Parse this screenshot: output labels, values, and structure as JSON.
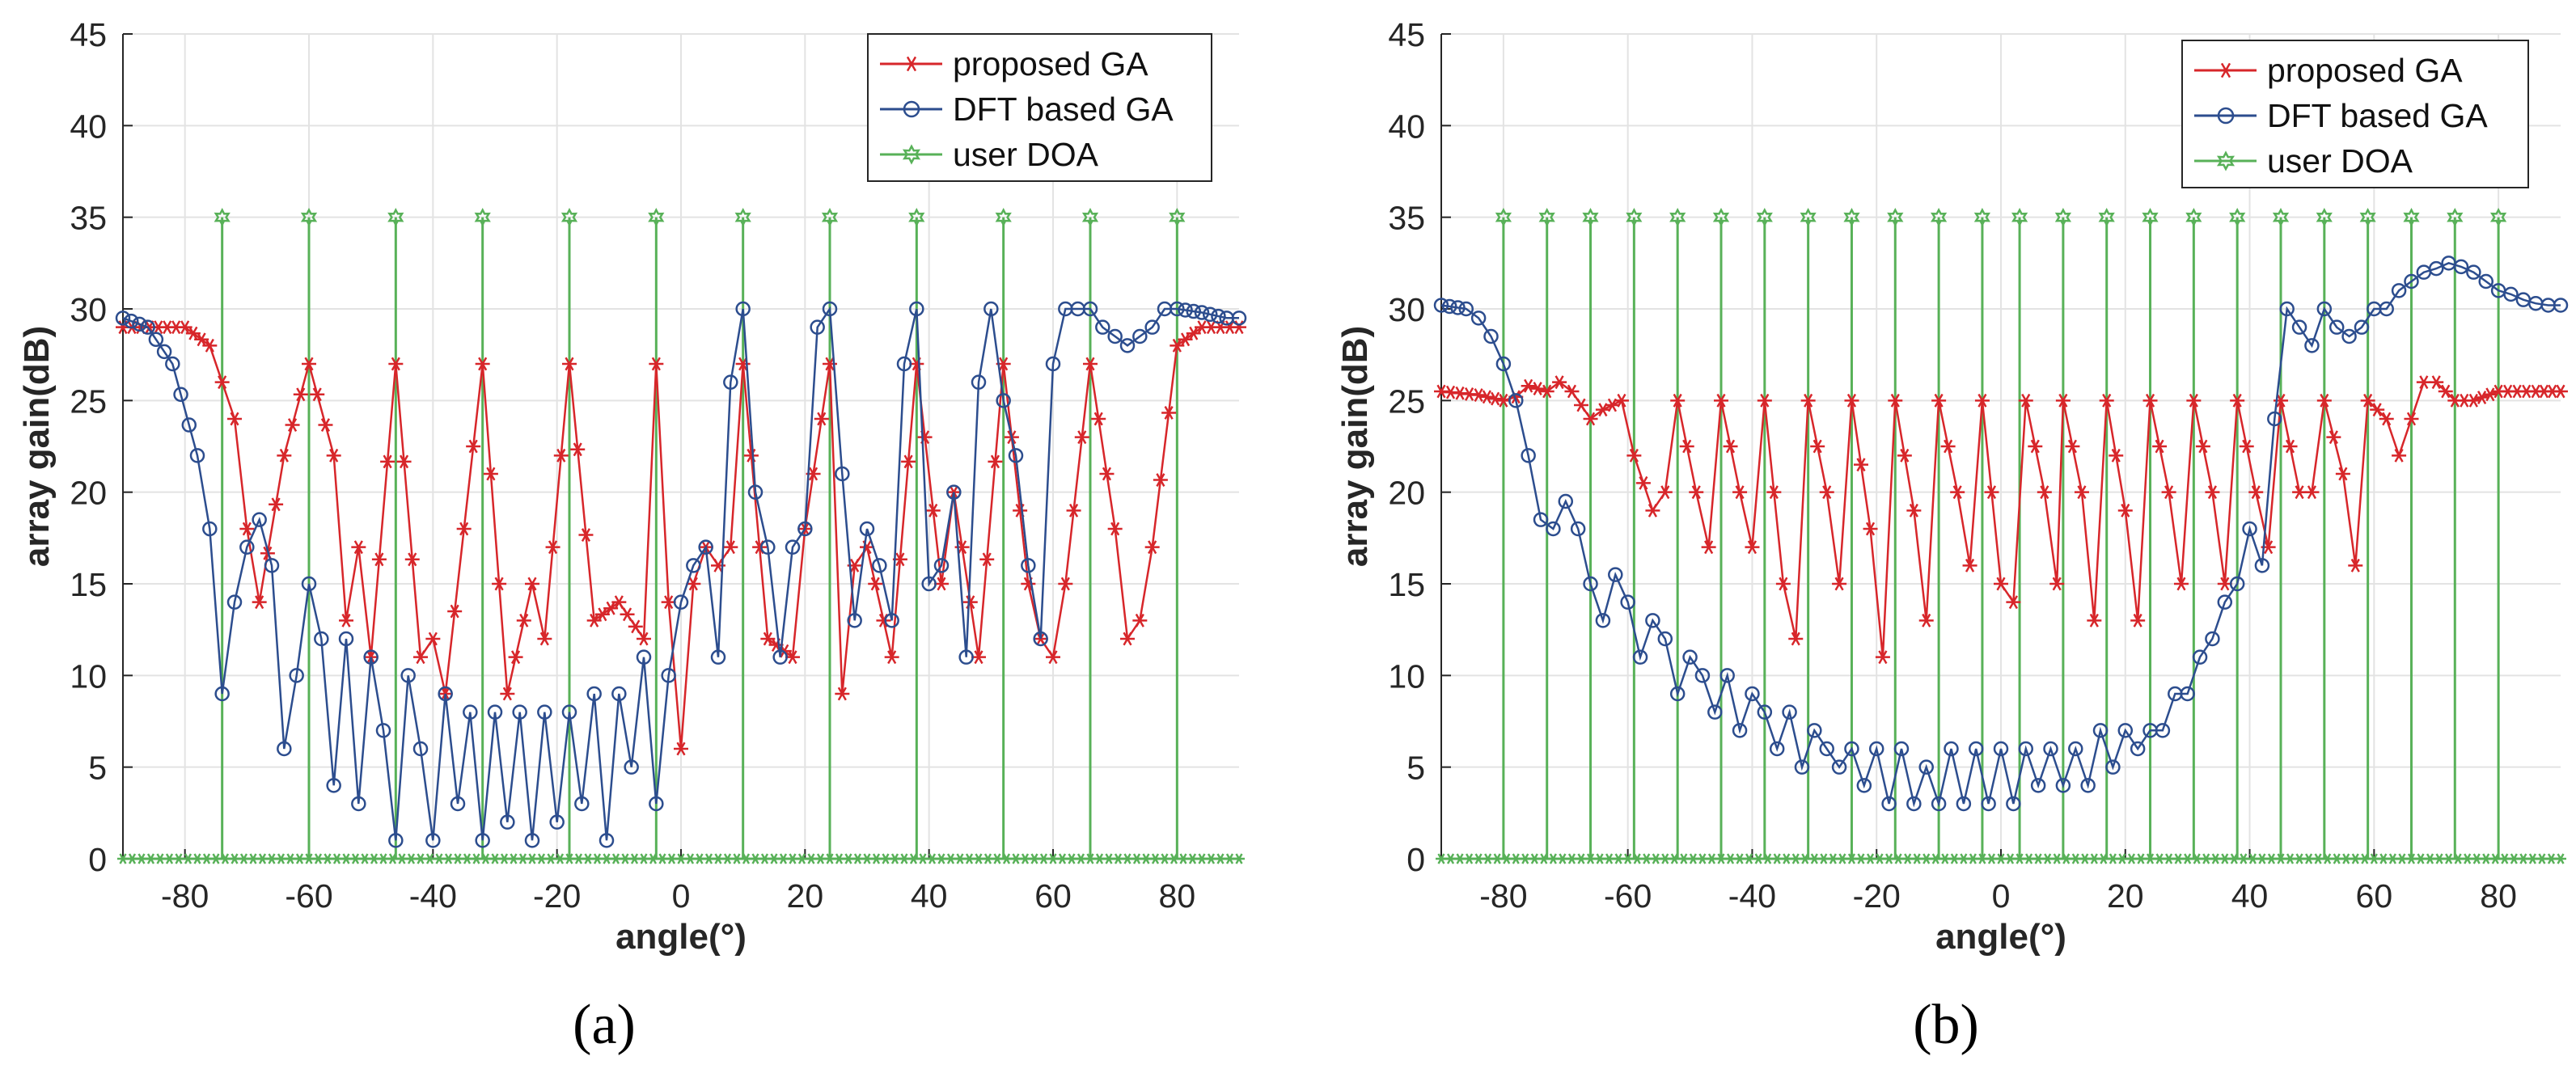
{
  "colors": {
    "proposed": "#d7262a",
    "dft": "#2c4d8e",
    "doa": "#58b158",
    "grid": "#e3e3e3",
    "axis": "#262626"
  },
  "chart_data": [
    {
      "type": "line",
      "caption": "(a)",
      "xlabel": "angle(°)",
      "ylabel": "array gain(dB)",
      "xlim": [
        -90,
        90
      ],
      "ylim": [
        0,
        45
      ],
      "xticks": [
        -80,
        -60,
        -40,
        -20,
        0,
        20,
        40,
        60,
        80
      ],
      "yticks": [
        0,
        5,
        10,
        15,
        20,
        25,
        30,
        35,
        40,
        45
      ],
      "grid": true,
      "legend": [
        "proposed GA",
        "DFT based GA",
        "user DOA"
      ],
      "legend_position": "top-right",
      "doa_angles": [
        -74,
        -60,
        -46,
        -32,
        -18,
        -4,
        10,
        24,
        38,
        52,
        66,
        80
      ],
      "doa_level": 35,
      "series": [
        {
          "name": "proposed GA",
          "x": [
            -90,
            -80,
            -76,
            -74,
            -72,
            -70,
            -68,
            -64,
            -60,
            -56,
            -54,
            -52,
            -50,
            -46,
            -42,
            -40,
            -38,
            -32,
            -28,
            -24,
            -22,
            -18,
            -14,
            -10,
            -6,
            -4,
            -2,
            0,
            2,
            4,
            6,
            8,
            10,
            14,
            18,
            20,
            24,
            26,
            28,
            30,
            34,
            38,
            42,
            44,
            48,
            52,
            56,
            58,
            60,
            62,
            66,
            70,
            72,
            74,
            76,
            80,
            84,
            90
          ],
          "values": [
            29,
            29,
            28,
            26,
            24,
            18,
            14,
            22,
            27,
            22,
            13,
            17,
            11,
            27,
            11,
            12,
            9,
            27,
            9,
            15,
            12,
            27,
            13,
            14,
            12,
            27,
            14,
            6,
            15,
            17,
            16,
            17,
            27,
            12,
            11,
            18,
            27,
            9,
            16,
            17,
            11,
            27,
            15,
            20,
            11,
            27,
            15,
            12,
            11,
            15,
            27,
            18,
            12,
            13,
            17,
            28,
            29,
            29
          ]
        },
        {
          "name": "DFT based GA",
          "x": [
            -90,
            -86,
            -82,
            -78,
            -76,
            -74,
            -72,
            -70,
            -68,
            -66,
            -64,
            -62,
            -60,
            -58,
            -56,
            -54,
            -52,
            -50,
            -48,
            -46,
            -44,
            -42,
            -40,
            -38,
            -36,
            -34,
            -32,
            -30,
            -28,
            -26,
            -24,
            -22,
            -20,
            -18,
            -16,
            -14,
            -12,
            -10,
            -8,
            -6,
            -4,
            -2,
            0,
            2,
            4,
            6,
            8,
            10,
            12,
            14,
            16,
            18,
            20,
            22,
            24,
            26,
            28,
            30,
            32,
            34,
            36,
            38,
            40,
            42,
            44,
            46,
            48,
            50,
            52,
            54,
            56,
            58,
            60,
            62,
            64,
            66,
            68,
            70,
            72,
            74,
            76,
            78,
            80,
            84,
            88,
            90
          ],
          "values": [
            29.5,
            29,
            27,
            22,
            18,
            9,
            14,
            17,
            18.5,
            16,
            6,
            10,
            15,
            12,
            4,
            12,
            3,
            11,
            7,
            1,
            10,
            6,
            1,
            9,
            3,
            8,
            1,
            8,
            2,
            8,
            1,
            8,
            2,
            8,
            3,
            9,
            1,
            9,
            5,
            11,
            3,
            10,
            14,
            16,
            17,
            11,
            26,
            30,
            20,
            17,
            11,
            17,
            18,
            29,
            30,
            21,
            13,
            18,
            16,
            13,
            27,
            30,
            15,
            16,
            20,
            11,
            26,
            30,
            25,
            22,
            16,
            12,
            27,
            30,
            30,
            30,
            29,
            28.5,
            28,
            28.5,
            29,
            30,
            30,
            29.8,
            29.5,
            29.5
          ]
        }
      ]
    },
    {
      "type": "line",
      "caption": "(b)",
      "xlabel": "angle(°)",
      "ylabel": "array gain(dB)",
      "xlim": [
        -90,
        90
      ],
      "ylim": [
        0,
        45
      ],
      "xticks": [
        -80,
        -60,
        -40,
        -20,
        0,
        20,
        40,
        60,
        80
      ],
      "yticks": [
        0,
        5,
        10,
        15,
        20,
        25,
        30,
        35,
        40,
        45
      ],
      "grid": true,
      "legend": [
        "proposed GA",
        "DFT based GA",
        "user DOA"
      ],
      "legend_position": "top-right",
      "doa_angles": [
        -80,
        -73,
        -66,
        -59,
        -52,
        -45,
        -38,
        -31,
        -24,
        -17,
        -10,
        -3,
        3,
        10,
        17,
        24,
        31,
        38,
        45,
        52,
        59,
        66,
        73,
        80
      ],
      "doa_level": 35,
      "series": [
        {
          "name": "proposed GA",
          "x": [
            -90,
            -84,
            -80,
            -78,
            -76,
            -73,
            -71,
            -69,
            -66,
            -64,
            -61,
            -59,
            -56,
            -54,
            -52,
            -49,
            -47,
            -45,
            -42,
            -40,
            -38,
            -35,
            -33,
            -31,
            -28,
            -26,
            -24,
            -21,
            -19,
            -17,
            -14,
            -12,
            -10,
            -7,
            -5,
            -3,
            0,
            2,
            4,
            7,
            9,
            10,
            13,
            15,
            17,
            20,
            22,
            24,
            27,
            29,
            31,
            34,
            36,
            38,
            41,
            43,
            45,
            48,
            50,
            52,
            55,
            57,
            59,
            62,
            64,
            66,
            68,
            70,
            73,
            76,
            80,
            86,
            90
          ],
          "values": [
            25.5,
            25.3,
            25,
            25.2,
            25.8,
            25.5,
            26,
            25.5,
            24,
            24.5,
            25,
            22,
            19,
            20,
            25,
            20,
            17,
            25,
            20,
            17,
            25,
            15,
            12,
            25,
            20,
            15,
            25,
            18,
            11,
            25,
            19,
            13,
            25,
            20,
            16,
            25,
            15,
            14,
            25,
            20,
            15,
            25,
            20,
            13,
            25,
            19,
            13,
            25,
            20,
            15,
            25,
            20,
            15,
            25,
            20,
            17,
            25,
            20,
            20,
            25,
            21,
            16,
            25,
            24,
            22,
            24,
            26,
            26,
            25,
            25,
            25.5,
            25.5,
            25.5
          ]
        },
        {
          "name": "DFT based GA",
          "x": [
            -90,
            -86,
            -84,
            -82,
            -80,
            -78,
            -76,
            -74,
            -72,
            -70,
            -68,
            -66,
            -64,
            -62,
            -60,
            -58,
            -56,
            -54,
            -52,
            -50,
            -48,
            -46,
            -44,
            -42,
            -40,
            -38,
            -36,
            -34,
            -32,
            -30,
            -28,
            -26,
            -24,
            -22,
            -20,
            -18,
            -16,
            -14,
            -12,
            -10,
            -8,
            -6,
            -4,
            -2,
            0,
            2,
            4,
            6,
            8,
            10,
            12,
            14,
            16,
            18,
            20,
            22,
            24,
            26,
            28,
            30,
            32,
            34,
            36,
            38,
            40,
            42,
            44,
            46,
            48,
            50,
            52,
            54,
            56,
            58,
            60,
            62,
            64,
            66,
            68,
            70,
            72,
            74,
            76,
            78,
            80,
            82,
            84,
            86,
            88,
            90
          ],
          "values": [
            30.2,
            30,
            29.5,
            28.5,
            27,
            25,
            22,
            18.5,
            18,
            19.5,
            18,
            15,
            13,
            15.5,
            14,
            11,
            13,
            12,
            9,
            11,
            10,
            8,
            10,
            7,
            9,
            8,
            6,
            8,
            5,
            7,
            6,
            5,
            6,
            4,
            6,
            3,
            6,
            3,
            5,
            3,
            6,
            3,
            6,
            3,
            6,
            3,
            6,
            4,
            6,
            4,
            6,
            4,
            7,
            5,
            7,
            6,
            7,
            7,
            9,
            9,
            11,
            12,
            14,
            15,
            18,
            16,
            24,
            30,
            29,
            28,
            30,
            29,
            28.5,
            29,
            30,
            30,
            31,
            31.5,
            32,
            32.2,
            32.5,
            32.3,
            32,
            31.5,
            31,
            30.8,
            30.5,
            30.3,
            30.2,
            30.2
          ]
        }
      ]
    }
  ]
}
